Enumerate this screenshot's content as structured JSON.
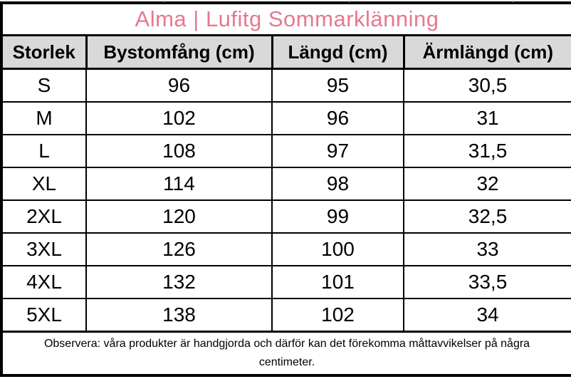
{
  "title": "Alma | Lufitg Sommarklänning",
  "colors": {
    "title_pink": "#e5798e",
    "header_bg": "#d9d9d9",
    "border": "#000000"
  },
  "table": {
    "columns": [
      "Storlek",
      "Bystomfång (cm)",
      "Längd (cm)",
      "Ärmlängd (cm)"
    ],
    "rows": [
      [
        "S",
        "96",
        "95",
        "30,5"
      ],
      [
        "M",
        "102",
        "96",
        "31"
      ],
      [
        "L",
        "108",
        "97",
        "31,5"
      ],
      [
        "XL",
        "114",
        "98",
        "32"
      ],
      [
        "2XL",
        "120",
        "99",
        "32,5"
      ],
      [
        "3XL",
        "126",
        "100",
        "33"
      ],
      [
        "4XL",
        "132",
        "101",
        "33,5"
      ],
      [
        "5XL",
        "138",
        "102",
        "34"
      ]
    ]
  },
  "footer_note": "Observera: våra produkter är handgjorda och därför kan det förekomma måttavvikelser på några centimeter."
}
